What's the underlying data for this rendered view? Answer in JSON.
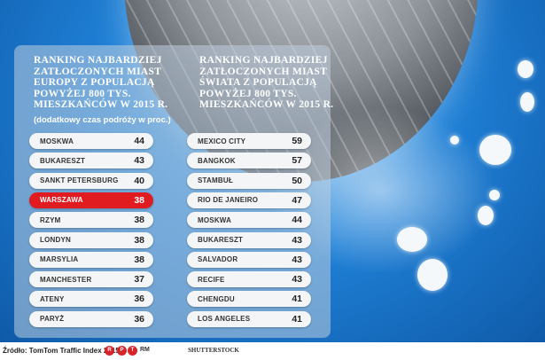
{
  "colors": {
    "highlight": "#e11c21",
    "row_bg": "#f4f5f6",
    "sky": "#1f80d6"
  },
  "subtitle": "(dodatkowy czas podróży w proc.)",
  "source": "Źródło: TomTom Traffic Index 2015",
  "logos": {
    "rm_mark": "RM",
    "stock": "SHUTTERSTOCK"
  },
  "chart_data": [
    {
      "type": "table",
      "title": [
        "RANKING NAJBARDZIEJ",
        "ZATŁOCZONYCH MIAST",
        "EUROPY Z POPULACJĄ",
        "POWYŻEJ 800 TYS.",
        "MIESZKAŃCÓW W 2015 R."
      ],
      "highlight": "WARSZAWA",
      "rows": [
        {
          "city": "MOSKWA",
          "value": 44
        },
        {
          "city": "BUKARESZT",
          "value": 43
        },
        {
          "city": "SANKT PETERSBURG",
          "value": 40
        },
        {
          "city": "WARSZAWA",
          "value": 38
        },
        {
          "city": "RZYM",
          "value": 38
        },
        {
          "city": "LONDYN",
          "value": 38
        },
        {
          "city": "MARSYLIA",
          "value": 38
        },
        {
          "city": "MANCHESTER",
          "value": 37
        },
        {
          "city": "ATENY",
          "value": 36
        },
        {
          "city": "PARYŻ",
          "value": 36
        }
      ]
    },
    {
      "type": "table",
      "title": [
        "RANKING NAJBARDZIEJ",
        "ZATŁOCZONYCH MIAST",
        "ŚWIATA Z POPULACJĄ",
        "POWYŻEJ 800 TYS.",
        "MIESZKAŃCÓW W 2015 R."
      ],
      "rows": [
        {
          "city": "MEXICO CITY",
          "value": 59
        },
        {
          "city": "BANGKOK",
          "value": 57
        },
        {
          "city": "STAMBUŁ",
          "value": 50
        },
        {
          "city": "RIO DE JANEIRO",
          "value": 47
        },
        {
          "city": "MOSKWA",
          "value": 44
        },
        {
          "city": "BUKARESZT",
          "value": 43
        },
        {
          "city": "SALVADOR",
          "value": 43
        },
        {
          "city": "RECIFE",
          "value": 43
        },
        {
          "city": "CHENGDU",
          "value": 41
        },
        {
          "city": "LOS ANGELES",
          "value": 41
        }
      ]
    }
  ]
}
